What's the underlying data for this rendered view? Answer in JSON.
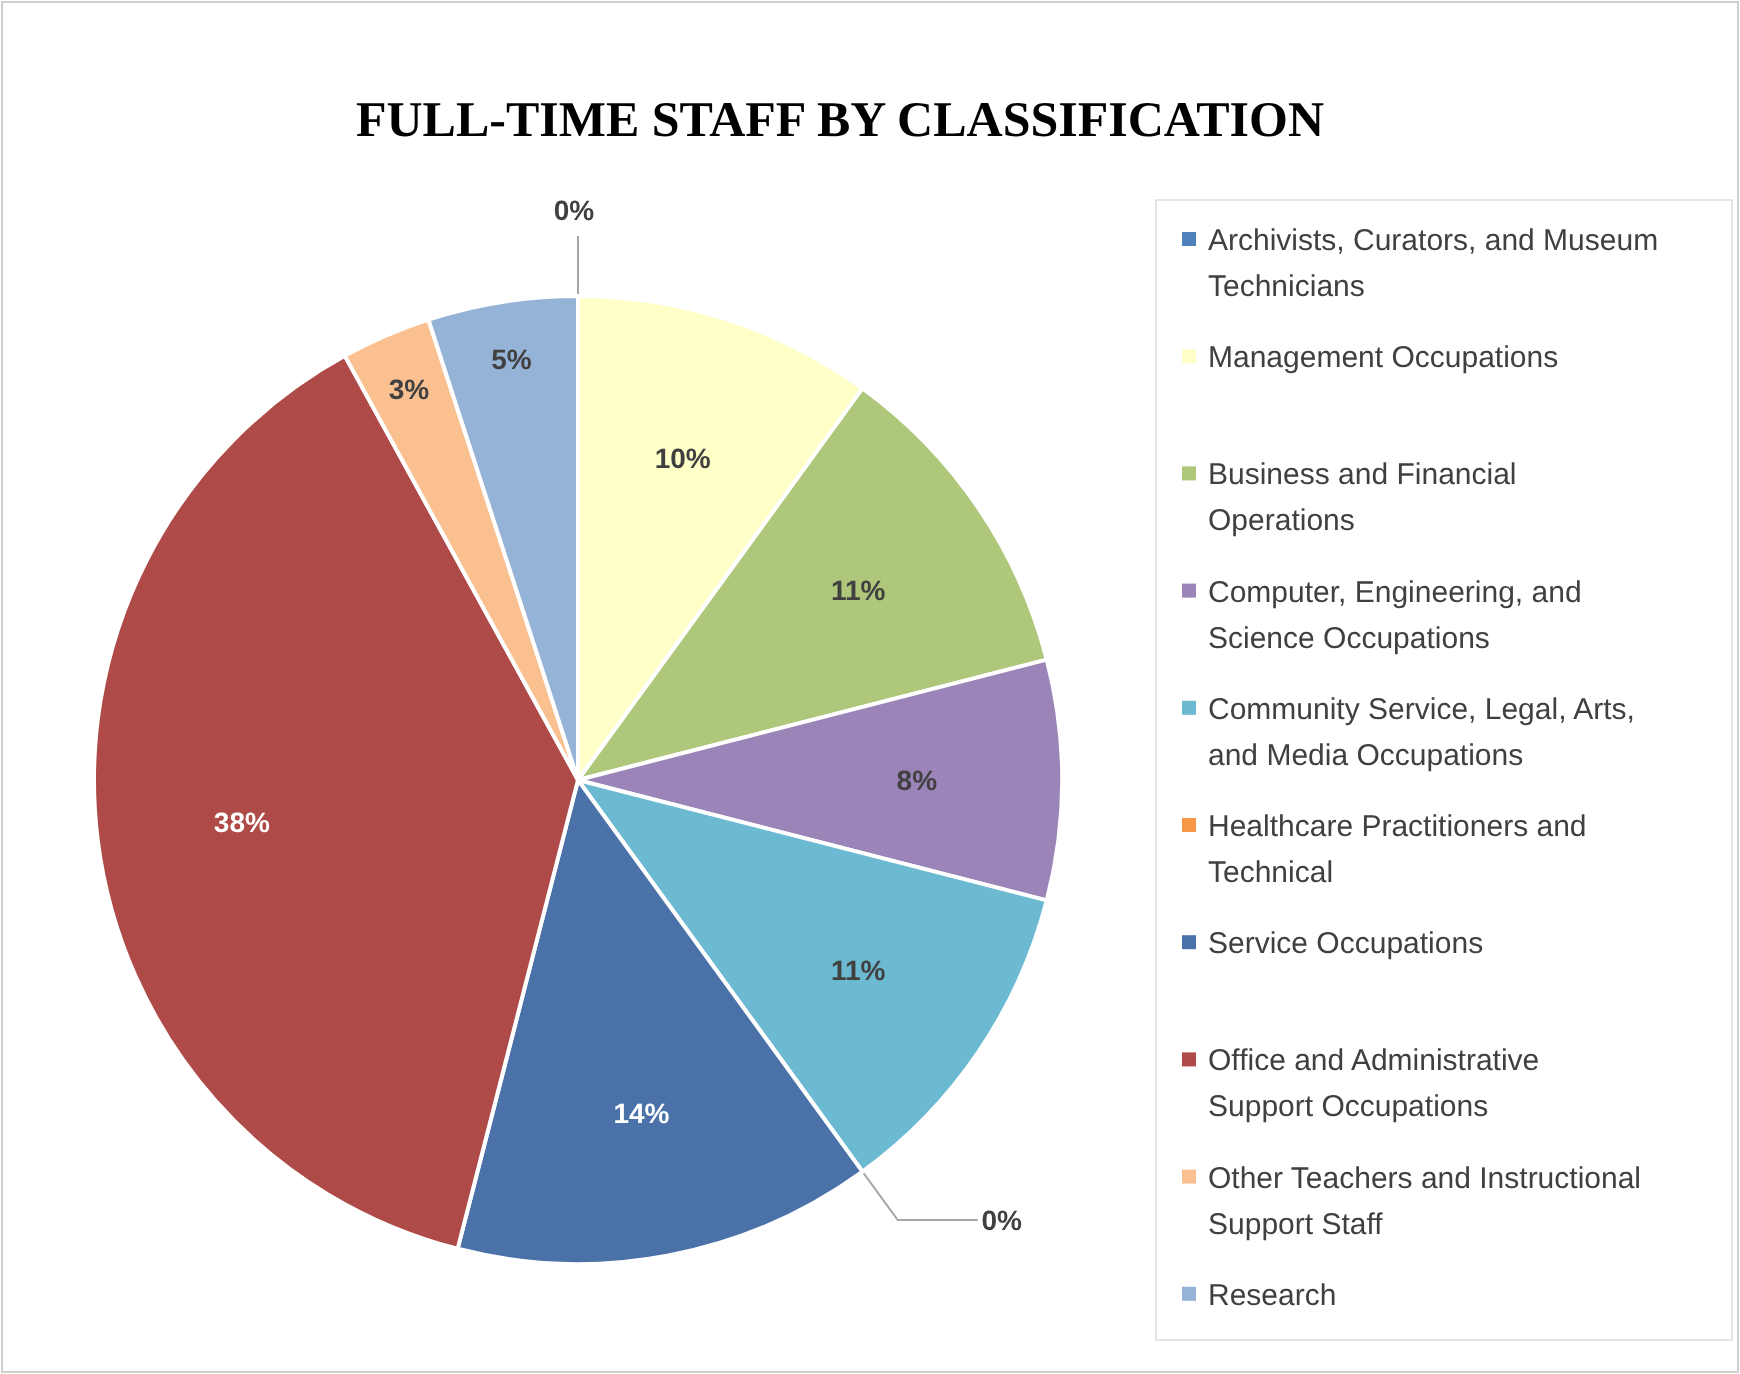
{
  "chart_data": {
    "type": "pie",
    "title": "FULL-TIME STAFF BY CLASSIFICATION",
    "categories": [
      "Archivists, Curators, and Museum Technicians",
      "Management Occupations",
      "Business and Financial Operations",
      "Computer, Engineering, and Science Occupations",
      "Community Service, Legal, Arts, and Media Occupations",
      "Healthcare Practitioners and Technical",
      "Service Occupations",
      "Office and Administrative Support Occupations",
      "Other Teachers and Instructional Support Staff",
      "Research"
    ],
    "values": [
      0,
      10,
      11,
      8,
      11,
      0,
      14,
      38,
      3,
      5
    ],
    "colors": [
      "#4f81bd",
      "#ffffc8",
      "#aec77a",
      "#9a84b8",
      "#6cbad2",
      "#f79646",
      "#4a72a8",
      "#ae4a48",
      "#fac090",
      "#95b3d7"
    ],
    "value_labels": [
      "0%",
      "10%",
      "11%",
      "8%",
      "11%",
      "0%",
      "14%",
      "38%",
      "3%",
      "5%"
    ],
    "legend": "right"
  }
}
